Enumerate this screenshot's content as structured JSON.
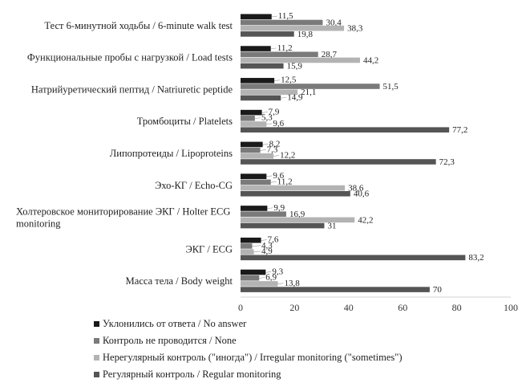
{
  "chart_data": {
    "type": "bar",
    "orientation": "horizontal",
    "categories": [
      "Тест 6-минутной ходьбы / 6-minute walk test",
      "Функциональные пробы с нагрузкой / Load tests",
      "Натрийуретический пептид / Natriuretic peptide",
      "Тромбоциты / Platelets",
      "Липопротеиды / Lipoproteins",
      "Эхо-КГ / Echo-CG",
      "Холтеровское мониторирование ЭКГ / Holter ECG monitoring",
      "ЭКГ / ECG",
      "Масса тела / Body weight"
    ],
    "series": [
      {
        "name": "Уклонились от ответа / No answer",
        "color": "#1a1a1a",
        "values": [
          11.5,
          11.2,
          12.5,
          7.9,
          8.2,
          9.6,
          9.9,
          7.6,
          9.3
        ],
        "labels": [
          "11,5",
          "11,2",
          "12,5",
          "7,9",
          "8,2",
          "9,6",
          "9,9",
          "7,6",
          "9,3"
        ]
      },
      {
        "name": "Контроль не проводится / None",
        "color": "#7a7a7a",
        "values": [
          30.4,
          28.7,
          51.5,
          5.3,
          7.3,
          11.2,
          16.9,
          4.3,
          6.9
        ],
        "labels": [
          "30,4",
          "28,7",
          "51,5",
          "5,3",
          "7,3",
          "11,2",
          "16,9",
          "4,3",
          "6,9"
        ]
      },
      {
        "name": "Нерегулярный контроль (\"иногда\") / Irregular monitoring (\"sometimes\")",
        "color": "#b3b3b3",
        "values": [
          38.3,
          44.2,
          21.1,
          9.6,
          12.2,
          38.6,
          42.2,
          4.9,
          13.8
        ],
        "labels": [
          "38,3",
          "44,2",
          "21,1",
          "9,6",
          "12,2",
          "38,6",
          "42,2",
          "4,9",
          "13,8"
        ]
      },
      {
        "name": "Регулярный контроль / Regular monitoring",
        "color": "#555555",
        "values": [
          19.8,
          15.9,
          14.9,
          77.2,
          72.3,
          40.6,
          31,
          83.2,
          70
        ],
        "labels": [
          "19,8",
          "15,9",
          "14,9",
          "77,2",
          "72,3",
          "40,6",
          "31",
          "83,2",
          "70"
        ]
      }
    ],
    "xlim": [
      0,
      100
    ],
    "xticks": [
      0,
      20,
      40,
      60,
      80,
      100
    ],
    "grid": false,
    "legend_position": "bottom-left"
  }
}
